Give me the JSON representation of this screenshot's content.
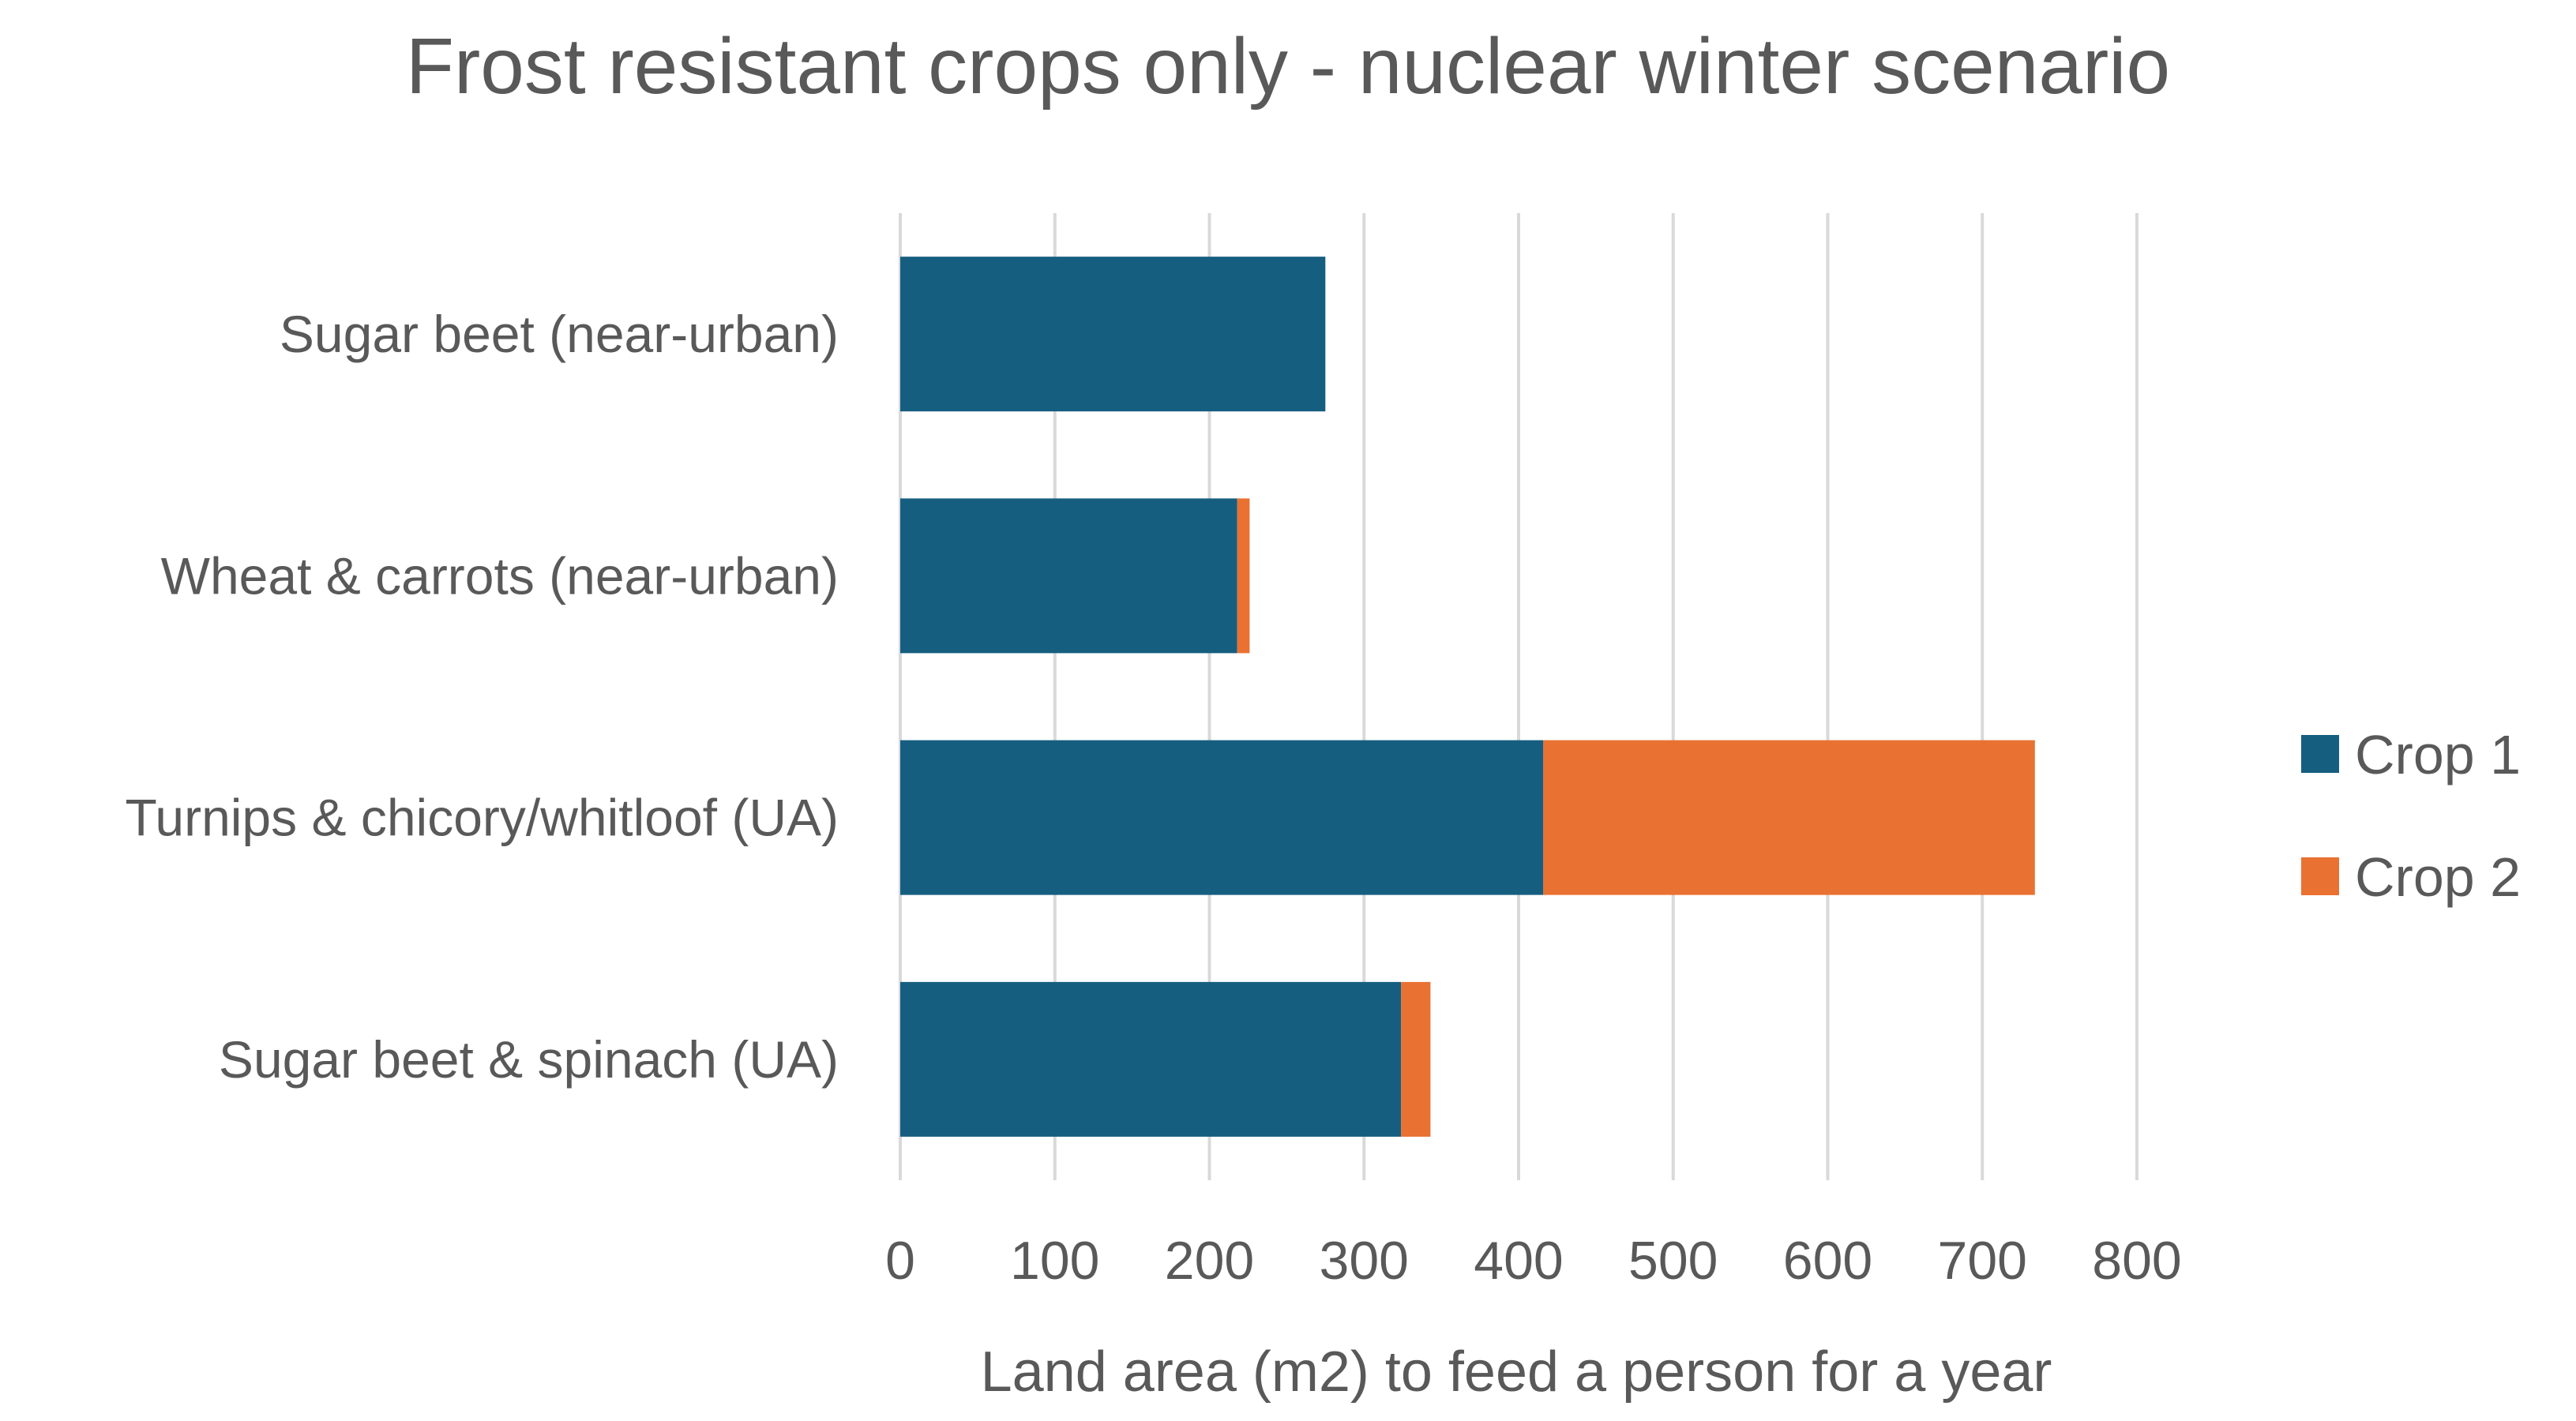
{
  "chart_data": {
    "type": "bar",
    "orientation": "horizontal",
    "stacked": true,
    "title": "Frost resistant crops only - nuclear winter scenario",
    "xlabel": "Land area (m2) to feed a person for a year",
    "ylabel": "",
    "xlim": [
      0,
      800
    ],
    "xticks": [
      0,
      100,
      200,
      300,
      400,
      500,
      600,
      700,
      800
    ],
    "grid": true,
    "legend_position": "right",
    "categories": [
      "Sugar beet (near-urban)",
      "Wheat & carrots (near-urban)",
      "Turnips & chicory/whitloof (UA)",
      "Sugar beet & spinach (UA)"
    ],
    "series": [
      {
        "name": "Crop 1",
        "color": "#165E80",
        "values": [
          275,
          218,
          416,
          324
        ]
      },
      {
        "name": "Crop 2",
        "color": "#E97132",
        "values": [
          0,
          8,
          318,
          19
        ]
      }
    ]
  }
}
